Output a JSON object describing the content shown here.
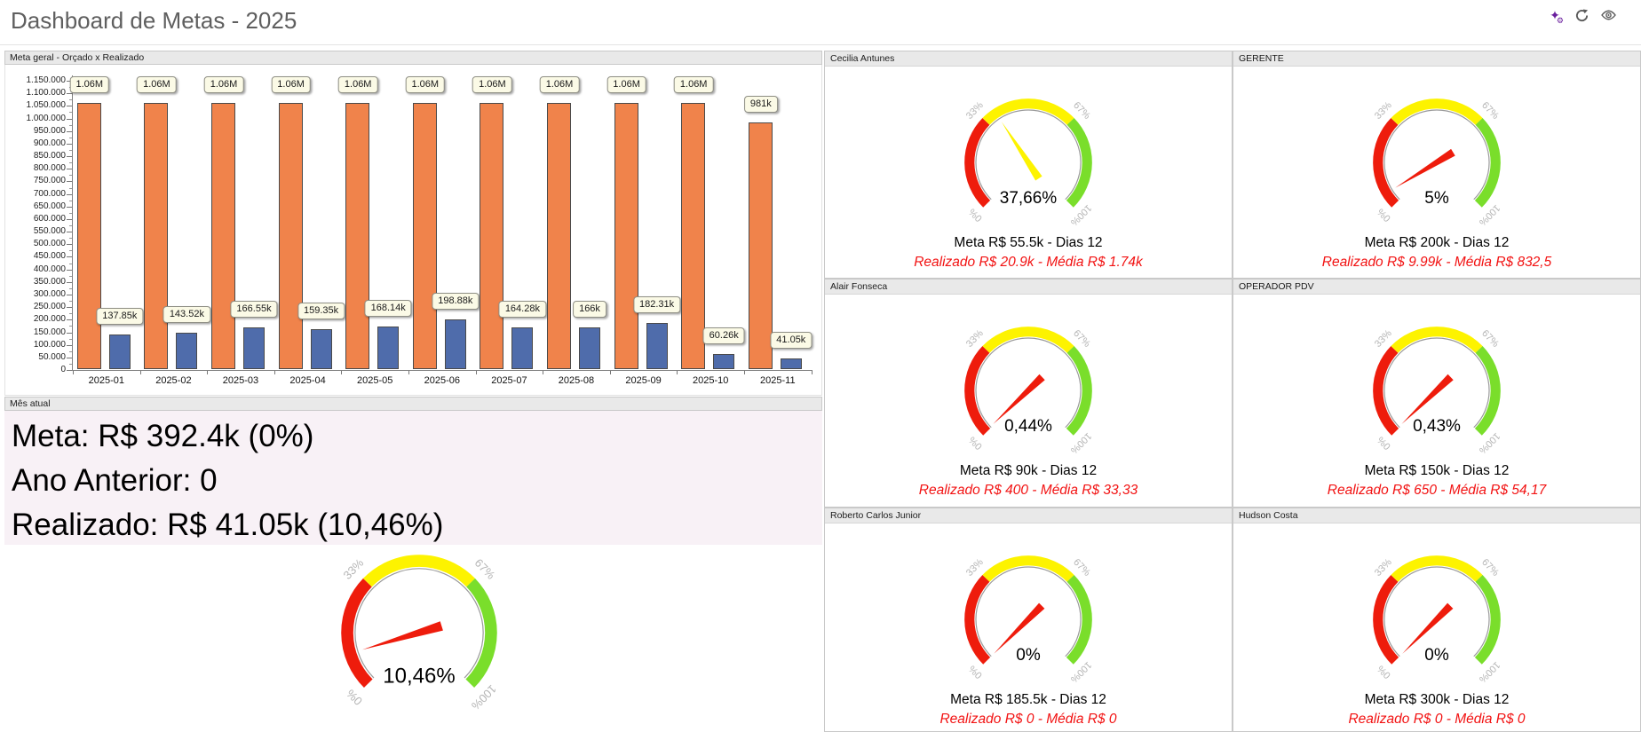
{
  "window": {
    "title": "Dashboard de Metas - 2025",
    "title_color": "#5f5f5f"
  },
  "toolbar": {
    "icons": [
      {
        "name": "sparkle-gear-icon",
        "color": "#6a1f9e"
      },
      {
        "name": "refresh-icon",
        "color": "#5a5a5a"
      },
      {
        "name": "eye-icon",
        "color": "#5a5a5a"
      }
    ]
  },
  "panels": {
    "meta_geral": {
      "header": "Meta geral - Orçado x Realizado"
    },
    "mes_atual": {
      "header": "Mês atual",
      "meta_line": "Meta: R$ 392.4k (0%)",
      "ano_anterior_line": "Ano Anterior: 0",
      "realizado_line": "Realizado: R$ 41.05k (10,46%)"
    }
  },
  "people_grid": [
    {
      "name": "Cecilia Antunes",
      "meta": "Meta R$ 55.5k - Dias 12",
      "realizado": "Realizado R$ 20.9k - Média R$ 1.74k"
    },
    {
      "name": "GERENTE",
      "meta": "Meta R$ 200k - Dias 12",
      "realizado": "Realizado R$ 9.99k - Média R$ 832,5"
    },
    {
      "name": "Alair Fonseca",
      "meta": "Meta R$ 90k - Dias 12",
      "realizado": "Realizado R$ 400 - Média R$ 33,33"
    },
    {
      "name": "OPERADOR PDV",
      "meta": "Meta R$ 150k - Dias 12",
      "realizado": "Realizado R$ 650 - Média R$ 54,17"
    },
    {
      "name": "Roberto Carlos Junior",
      "meta": "Meta R$ 185.5k - Dias 12",
      "realizado": "Realizado R$ 0 - Média R$ 0"
    },
    {
      "name": "Hudson Costa",
      "meta": "Meta R$ 300k - Dias 12",
      "realizado": "Realizado R$ 0 - Média R$ 0"
    }
  ],
  "gauge_style": {
    "zones": [
      {
        "to": 33,
        "color": "#ee1c0c"
      },
      {
        "to": 67,
        "color": "#fdf300"
      },
      {
        "to": 100,
        "color": "#7ade2b"
      }
    ],
    "tick_labels": [
      "0%",
      "33%",
      "67%",
      "100%"
    ],
    "tick_values": [
      0,
      33,
      67,
      100
    ],
    "tick_color": "#b5b5b5",
    "inner_ring_color": "#9a9a9a"
  },
  "chart_data": [
    {
      "type": "bar",
      "title": "Meta geral - Orçado x Realizado",
      "categories": [
        "2025-01",
        "2025-02",
        "2025-03",
        "2025-04",
        "2025-05",
        "2025-06",
        "2025-07",
        "2025-08",
        "2025-09",
        "2025-10",
        "2025-11"
      ],
      "series": [
        {
          "name": "Orçado",
          "color": "#f0834b",
          "values": [
            1060000,
            1060000,
            1060000,
            1060000,
            1060000,
            1060000,
            1060000,
            1060000,
            1060000,
            1060000,
            981000
          ],
          "labels": [
            "1.06M",
            "1.06M",
            "1.06M",
            "1.06M",
            "1.06M",
            "1.06M",
            "1.06M",
            "1.06M",
            "1.06M",
            "1.06M",
            "981k"
          ]
        },
        {
          "name": "Realizado",
          "color": "#4f6cab",
          "values": [
            137850,
            143520,
            166550,
            159350,
            168140,
            198880,
            164280,
            166000,
            182310,
            60260,
            41050
          ],
          "labels": [
            "137.85k",
            "143.52k",
            "166.55k",
            "159.35k",
            "168.14k",
            "198.88k",
            "164.28k",
            "166k",
            "182.31k",
            "60.26k",
            "41.05k"
          ]
        }
      ],
      "ylim": [
        0,
        1150000
      ],
      "ytick_step": 50000,
      "yticks": [
        "0",
        "50.000",
        "100.000",
        "150.000",
        "200.000",
        "250.000",
        "300.000",
        "350.000",
        "400.000",
        "450.000",
        "500.000",
        "550.000",
        "600.000",
        "650.000",
        "700.000",
        "750.000",
        "800.000",
        "850.000",
        "900.000",
        "950.000",
        "1.000.000",
        "1.050.000",
        "1.100.000",
        "1.150.000"
      ],
      "grid": false,
      "legend": "none"
    },
    {
      "type": "gauge",
      "owner": "Mês atual",
      "value": 10.46,
      "label": "10,46%"
    },
    {
      "type": "gauge",
      "owner": "Cecilia Antunes",
      "value": 37.66,
      "label": "37,66%"
    },
    {
      "type": "gauge",
      "owner": "GERENTE",
      "value": 5,
      "label": "5%"
    },
    {
      "type": "gauge",
      "owner": "Alair Fonseca",
      "value": 0.44,
      "label": "0,44%"
    },
    {
      "type": "gauge",
      "owner": "OPERADOR PDV",
      "value": 0.43,
      "label": "0,43%"
    },
    {
      "type": "gauge",
      "owner": "Roberto Carlos Junior",
      "value": 0,
      "label": "0%"
    },
    {
      "type": "gauge",
      "owner": "Hudson Costa",
      "value": 0,
      "label": "0%"
    }
  ]
}
